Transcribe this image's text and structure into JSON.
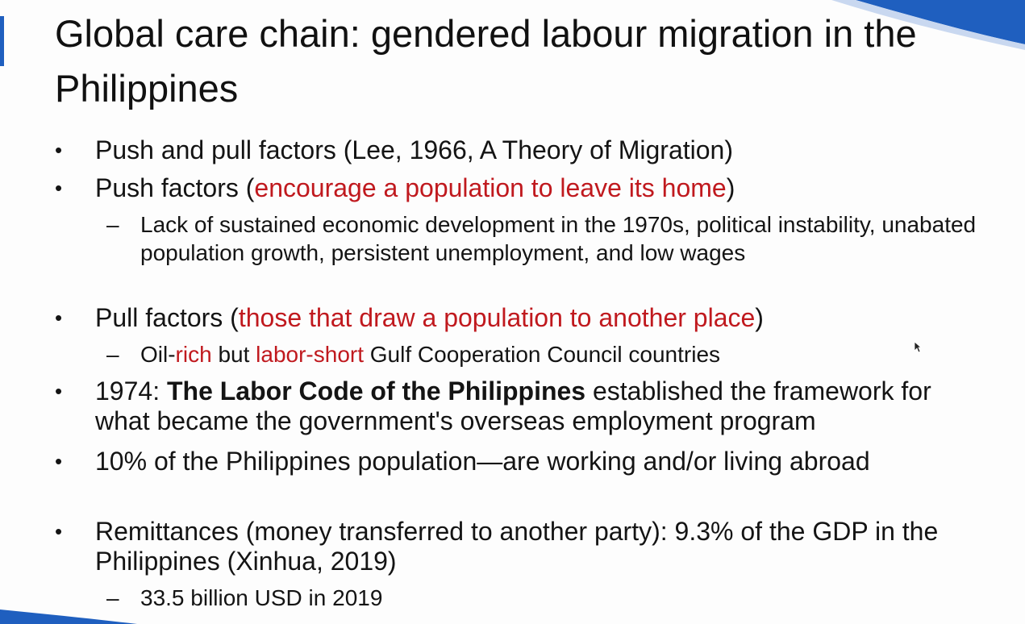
{
  "title": "Global care chain: gendered labour migration in the Philippines",
  "bullet_marker": "•",
  "sub_marker": "–",
  "bullets": {
    "b1": {
      "text": "Push and pull factors (Lee, 1966, A Theory of Migration)"
    },
    "b2": {
      "pre": "Push factors (",
      "red": "encourage a population to leave its home",
      "post": ")"
    },
    "b2_sub1": {
      "text": "Lack of sustained economic development in the 1970s, political instability, unabated population growth, persistent unemployment, and low wages"
    },
    "b3": {
      "pre": "Pull factors (",
      "red": "those that draw a population to another place",
      "post": ")"
    },
    "b3_sub1": {
      "t1": "Oil-",
      "r1": "rich",
      "t2": " but ",
      "r2": "labor-short",
      "t3": " Gulf Cooperation Council countries"
    },
    "b4": {
      "pre": "1974: ",
      "bold": "The Labor Code of the Philippines",
      "post": " established the framework for what became the government's overseas employment program"
    },
    "b5": {
      "text": "10% of the Philippines population—are working and/or living abroad"
    },
    "b6": {
      "text": "Remittances (money transferred to another party): 9.3% of the GDP in the Philippines (Xinhua, 2019)"
    },
    "b6_sub1": {
      "text": "33.5 billion USD in 2019"
    }
  },
  "colors": {
    "accent_red": "#c0191e",
    "deco_blue": "#1f5fbf"
  }
}
